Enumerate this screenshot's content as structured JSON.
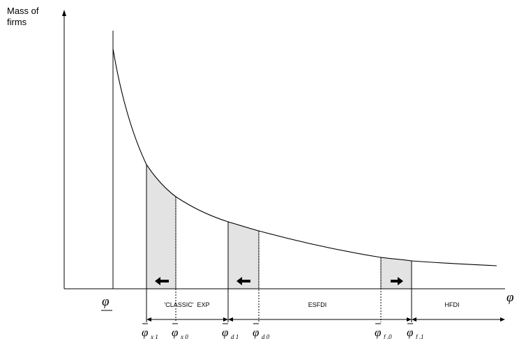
{
  "y_axis_label": "Mass of firms",
  "x_axis_symbol": "φ",
  "lower_bound_symbol": "φ",
  "regions": [
    {
      "id": "classic-exp",
      "label": "'CLASSIC'  EXP"
    },
    {
      "id": "esfdi",
      "label": "ESFDI"
    },
    {
      "id": "hfdi",
      "label": "HFDI"
    }
  ],
  "cutoffs": [
    {
      "symbol": "φ",
      "subscript": "x 1"
    },
    {
      "symbol": "φ",
      "subscript": "x 0"
    },
    {
      "symbol": "φ",
      "subscript": "d 1"
    },
    {
      "symbol": "φ",
      "subscript": "d 0"
    },
    {
      "symbol": "φ",
      "subscript": "f ,0"
    },
    {
      "symbol": "φ",
      "subscript": "f ,1"
    }
  ],
  "shift_arrows": [
    {
      "direction": "left",
      "between": "x 1 – x 0"
    },
    {
      "direction": "left",
      "between": "d 1 – d 0"
    },
    {
      "direction": "right",
      "between": "f ,0 – f ,1"
    }
  ],
  "colors": {
    "line": "#000000",
    "shade": "#e3e3e3"
  }
}
